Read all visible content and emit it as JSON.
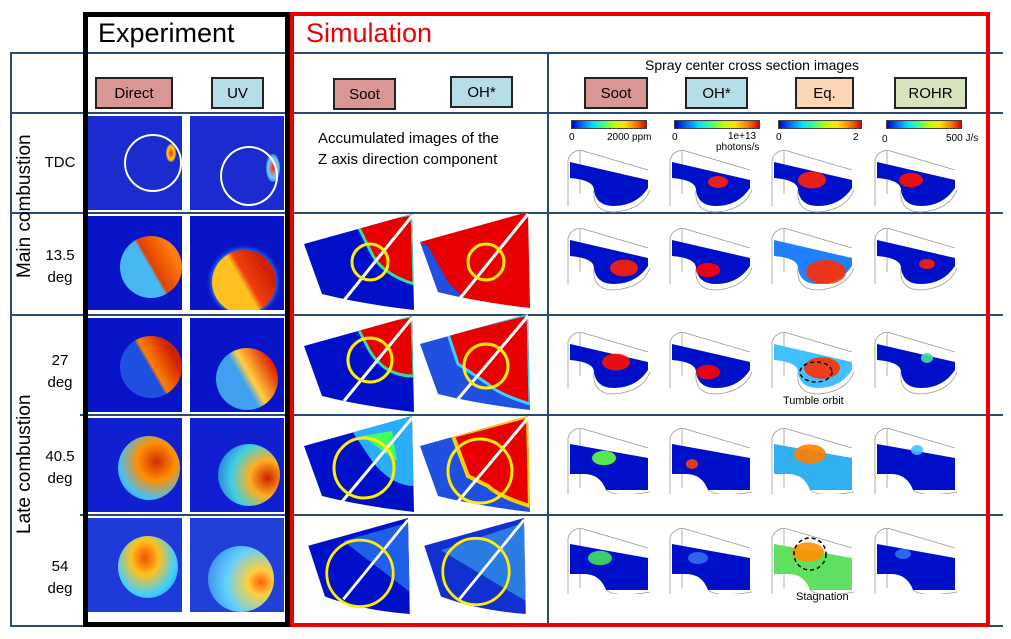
{
  "sections": {
    "experiment": {
      "title": "Experiment",
      "border_color": "#000000"
    },
    "simulation": {
      "title": "Simulation",
      "border_color": "#ee0000",
      "title_color": "#ee0000"
    }
  },
  "columns": {
    "experiment": [
      {
        "label": "Direct",
        "color": "#d99694"
      },
      {
        "label": "UV",
        "color": "#b7dde8"
      }
    ],
    "z_axis": [
      {
        "label": "Soot",
        "color": "#d99694"
      },
      {
        "label": "OH*",
        "color": "#b7dde8"
      }
    ],
    "spray_title": "Spray center cross section images",
    "spray": [
      {
        "label": "Soot",
        "color": "#d99694"
      },
      {
        "label": "OH*",
        "color": "#b7dde8"
      },
      {
        "label": "Eq.",
        "color": "#fcd5b5"
      },
      {
        "label": "ROHR",
        "color": "#d7e4bd"
      }
    ]
  },
  "z_axis_note": [
    "Accumulated images of the",
    "Z axis direction component"
  ],
  "colorbars": [
    {
      "min": "0",
      "max": "2000 ppm"
    },
    {
      "min": "0",
      "max": "1e+13",
      "unit": "photons/s"
    },
    {
      "min": "0",
      "max": "2"
    },
    {
      "min": "0",
      "max": "500 J/s"
    }
  ],
  "groups": [
    {
      "label": "Main combustion"
    },
    {
      "label": "Late combustion"
    }
  ],
  "rows": [
    {
      "label_line1": "TDC",
      "label_line2": ""
    },
    {
      "label_line1": "13.5",
      "label_line2": "deg"
    },
    {
      "label_line1": "27",
      "label_line2": "deg"
    },
    {
      "label_line1": "40.5",
      "label_line2": "deg"
    },
    {
      "label_line1": "54",
      "label_line2": "deg"
    }
  ],
  "annotations": {
    "tumble": "Tumble orbit",
    "stagnation": "Stagnation"
  }
}
